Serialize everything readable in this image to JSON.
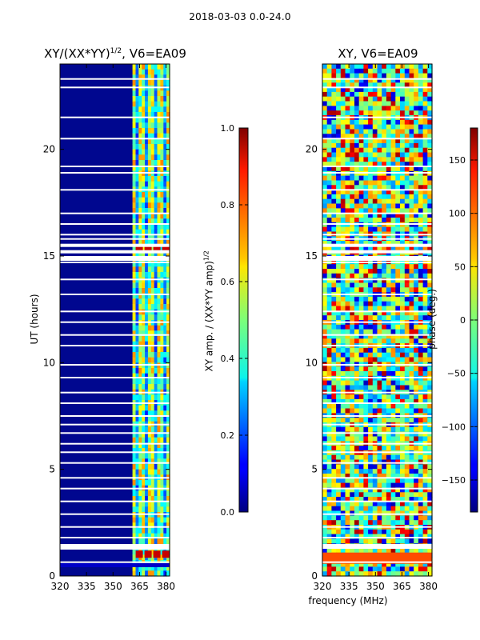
{
  "figure": {
    "suptitle": "2018-03-03 0.0-24.0"
  },
  "chart_data": [
    {
      "type": "heatmap",
      "title": "XY/(XX*YY)",
      "title_exponent": "1/2",
      "title_suffix": ", V6=EA09",
      "xlabel": "",
      "ylabel": "UT (hours)",
      "xlim": [
        320,
        382
      ],
      "ylim": [
        0,
        24
      ],
      "xticks": [
        320,
        335,
        350,
        365,
        380
      ],
      "yticks": [
        0,
        5,
        10,
        15,
        20
      ],
      "colorbar": {
        "label": "XY amp. / (XX*YY amp)",
        "label_exponent": "1/2",
        "range": [
          0.0,
          1.0
        ],
        "ticks": [
          "0.0",
          "0.2",
          "0.4",
          "0.6",
          "0.8",
          "1.0"
        ],
        "tick_values": [
          0.0,
          0.2,
          0.4,
          0.6,
          0.8,
          1.0
        ]
      }
    },
    {
      "type": "heatmap",
      "title": "XY, V6=EA09",
      "xlabel": "frequency (MHz)",
      "ylabel": "",
      "xlim": [
        320,
        382
      ],
      "ylim": [
        0,
        24
      ],
      "xticks": [
        320,
        335,
        350,
        365,
        380
      ],
      "yticks": [
        0,
        5,
        10,
        15,
        20
      ],
      "colorbar": {
        "label": "phase (deg.)",
        "range": [
          -180,
          180
        ],
        "ticks": [
          "150",
          "100",
          "50",
          "0",
          "−50",
          "−100",
          "−150"
        ],
        "tick_values": [
          150,
          100,
          50,
          0,
          -50,
          -100,
          -150
        ]
      }
    }
  ]
}
